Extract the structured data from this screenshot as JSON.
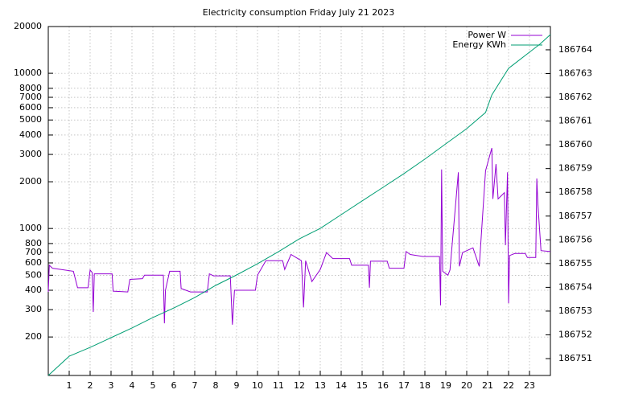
{
  "chart_data": {
    "type": "line",
    "title": "Electricity consumption Friday July 21 2023",
    "xlim": [
      0,
      24
    ],
    "xticks": [
      1,
      2,
      3,
      4,
      5,
      6,
      7,
      8,
      9,
      10,
      11,
      12,
      13,
      14,
      15,
      16,
      17,
      18,
      19,
      20,
      21,
      22,
      23
    ],
    "ylim": [
      113,
      20000
    ],
    "ylog": true,
    "yticks": [
      200,
      300,
      400,
      500,
      600,
      700,
      800,
      1000,
      2000,
      3000,
      4000,
      5000,
      6000,
      7000,
      8000,
      10000,
      20000
    ],
    "y2lim": [
      186750.29,
      186764.98
    ],
    "y2ticks": [
      186751,
      186752,
      186753,
      186754,
      186755,
      186756,
      186757,
      186758,
      186759,
      186760,
      186761,
      186762,
      186763,
      186764
    ],
    "grid": true,
    "legend": "top-right",
    "series": [
      {
        "name": "Power W",
        "color": "#9400d3",
        "x": [
          0,
          0.05,
          0.2,
          1.2,
          1.4,
          1.9,
          2.0,
          2.1,
          2.15,
          2.2,
          3.05,
          3.1,
          3.8,
          3.9,
          4.5,
          4.6,
          5.5,
          5.55,
          5.6,
          5.8,
          6.3,
          6.35,
          6.8,
          7.6,
          7.7,
          7.9,
          8.7,
          8.8,
          8.9,
          9.9,
          10.0,
          10.4,
          11.2,
          11.3,
          11.6,
          12.1,
          12.2,
          12.3,
          12.6,
          13.0,
          13.3,
          13.6,
          14.4,
          14.5,
          15.3,
          15.35,
          15.4,
          16.2,
          16.3,
          17.0,
          17.1,
          17.3,
          17.9,
          18.7,
          18.75,
          18.8,
          18.85,
          19.1,
          19.2,
          19.6,
          19.65,
          19.8,
          20.3,
          20.6,
          20.9,
          21.2,
          21.25,
          21.4,
          21.5,
          21.8,
          21.85,
          21.95,
          22.0,
          22.05,
          22.3,
          22.8,
          22.9,
          23.3,
          23.35,
          23.4,
          23.55,
          24
        ],
        "values": [
          390,
          580,
          555,
          530,
          415,
          415,
          540,
          520,
          290,
          510,
          510,
          395,
          390,
          470,
          475,
          500,
          500,
          245,
          400,
          530,
          530,
          410,
          390,
          390,
          510,
          495,
          495,
          240,
          400,
          400,
          500,
          620,
          620,
          545,
          680,
          620,
          310,
          620,
          455,
          545,
          700,
          640,
          640,
          580,
          580,
          415,
          615,
          615,
          555,
          555,
          710,
          680,
          660,
          660,
          320,
          2400,
          530,
          500,
          540,
          2300,
          570,
          700,
          750,
          570,
          2350,
          3300,
          1550,
          2600,
          1550,
          1700,
          780,
          2300,
          330,
          670,
          690,
          690,
          650,
          650,
          2100,
          1450,
          720,
          710
        ]
      },
      {
        "name": "Energy KWh",
        "color": "#009e73",
        "axis": "y2",
        "x": [
          0,
          1,
          2,
          3,
          4,
          5,
          6,
          7,
          8,
          9,
          10,
          11,
          12,
          13,
          14,
          15,
          16,
          17,
          18,
          19,
          20,
          20.9,
          21.2,
          22,
          23,
          23.5,
          24
        ],
        "values": [
          186750.29,
          186751.1,
          186751.47,
          186751.88,
          186752.29,
          186752.73,
          186753.13,
          186753.57,
          186754.08,
          186754.52,
          186754.99,
          186755.5,
          186756.04,
          186756.48,
          186757.06,
          186757.64,
          186758.21,
          186758.79,
          186759.4,
          186760.04,
          186760.68,
          186761.36,
          186762.1,
          186763.22,
          186763.9,
          186764.24,
          186764.64
        ]
      }
    ]
  }
}
